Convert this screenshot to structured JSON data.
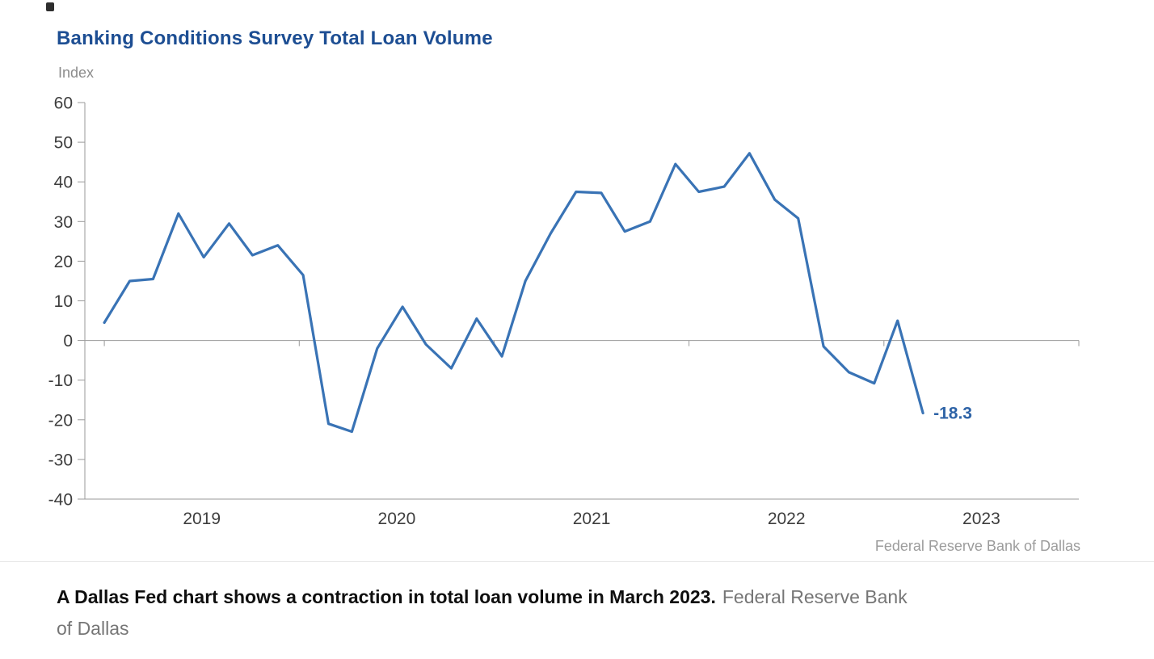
{
  "colors": {
    "navy": "#1d4e93",
    "line_blue": "#3973b5",
    "annotation_blue": "#2f64a7",
    "axis_line": "#9a9a9a",
    "tick_text": "#3d3d3d",
    "muted_text": "#8c8c8c",
    "source_text": "#9c9c9c",
    "caption_text": "#0f0f0f",
    "caption_credit": "#767676",
    "divider": "#e6e6e6",
    "background": "#ffffff"
  },
  "chart_data": {
    "type": "line",
    "title": "Banking Conditions Survey Total Loan Volume",
    "ylabel": "Index",
    "source": "Federal Reserve Bank of Dallas",
    "ylim": [
      -40,
      60
    ],
    "xlim": [
      2018.9,
      2024.0
    ],
    "y_ticks": [
      60,
      50,
      40,
      30,
      20,
      10,
      0,
      -10,
      -20,
      -30,
      -40
    ],
    "x_tick_labels": [
      "2019",
      "2020",
      "2021",
      "2022",
      "2023"
    ],
    "x_tick_positions": [
      2019.5,
      2020.5,
      2021.5,
      2022.5,
      2023.5
    ],
    "x_year_boundaries": [
      2019,
      2020,
      2021,
      2022,
      2023,
      2024
    ],
    "grid": "zero-line-only",
    "legend": "none",
    "x": [
      2019.0,
      2019.13,
      2019.25,
      2019.38,
      2019.51,
      2019.64,
      2019.76,
      2019.89,
      2020.02,
      2020.15,
      2020.27,
      2020.4,
      2020.53,
      2020.65,
      2020.78,
      2020.91,
      2021.04,
      2021.16,
      2021.29,
      2021.42,
      2021.55,
      2021.67,
      2021.8,
      2021.93,
      2022.05,
      2022.18,
      2022.31,
      2022.44,
      2022.56,
      2022.69,
      2022.82,
      2022.95,
      2023.07,
      2023.2
    ],
    "series": [
      {
        "name": "Total loan volume",
        "values": [
          4.5,
          15,
          15.5,
          32,
          21,
          29.5,
          21.5,
          24,
          16.5,
          -21,
          -23,
          -2,
          8.5,
          -1,
          -7,
          5.5,
          -4,
          15,
          27,
          37.5,
          37.2,
          27.5,
          30,
          44.5,
          37.5,
          38.8,
          47.2,
          35.5,
          30.8,
          -1.5,
          -8,
          -10.8,
          5,
          -18.3
        ]
      }
    ],
    "annotation": {
      "x": 2023.2,
      "y": -18.3,
      "text": "-18.3"
    }
  },
  "caption": {
    "bold_text": "A Dallas Fed chart shows a contraction in total loan volume in March 2023.",
    "credit_text": "Federal Reserve Bank of Dallas",
    "credit_line1": "Federal Reserve Bank",
    "credit_line2": "of Dallas"
  }
}
